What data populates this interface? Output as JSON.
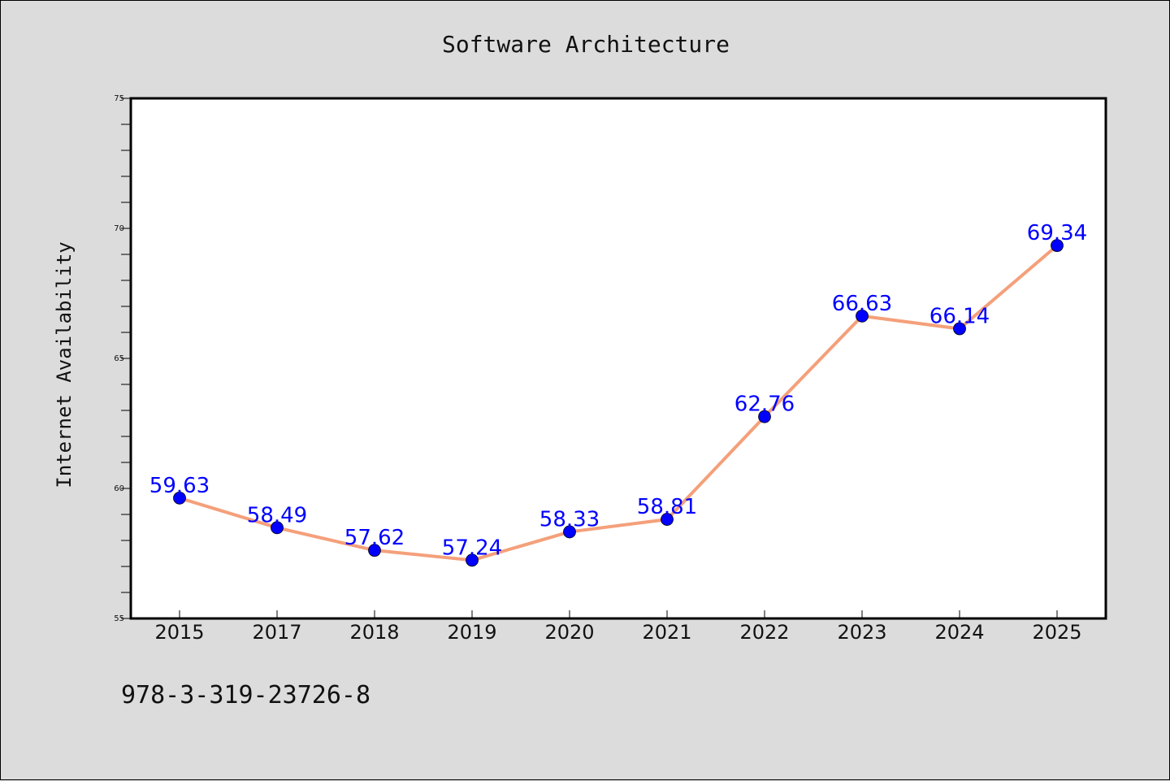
{
  "chart_data": {
    "type": "line",
    "title": "Software Architecture",
    "xlabel": "",
    "ylabel": "Internet Availability",
    "categories": [
      "2015",
      "2017",
      "2018",
      "2019",
      "2020",
      "2021",
      "2022",
      "2023",
      "2024",
      "2025"
    ],
    "series": [
      {
        "values": [
          59.63,
          58.49,
          57.62,
          57.24,
          58.33,
          58.81,
          62.76,
          66.63,
          66.14,
          69.34
        ],
        "line_color": "#f4a07a",
        "marker_color": "#0000ff"
      }
    ],
    "data_labels": [
      "59.63",
      "58.49",
      "57.62",
      "57.24",
      "58.33",
      "58.81",
      "62.76",
      "66.63",
      "66.14",
      "69.34"
    ],
    "ylim": [
      55,
      75
    ],
    "yticks": [
      "55",
      "60",
      "65",
      "70",
      "75"
    ],
    "grid": false,
    "legend": "none"
  },
  "footer": {
    "code": "978-3-319-23726-8"
  },
  "colors": {
    "background": "#dcdcdc",
    "plot_background": "#ffffff",
    "label_color": "#0000ff"
  }
}
